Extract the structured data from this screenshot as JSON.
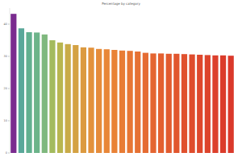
{
  "chart_data": {
    "type": "bar",
    "title": "Percentage by category",
    "categories": [
      null,
      null,
      null,
      null,
      null,
      null,
      null,
      null,
      null,
      null,
      null,
      null,
      null,
      null,
      null,
      null,
      null,
      null,
      null,
      null,
      null,
      null,
      null,
      null,
      null,
      null,
      null,
      null,
      null
    ],
    "values": [
      43.2,
      38.7,
      37.5,
      37.4,
      36.8,
      35.0,
      34.3,
      33.8,
      33.5,
      32.8,
      32.7,
      32.3,
      32.2,
      32.0,
      31.8,
      31.7,
      31.5,
      31.1,
      30.9,
      30.9,
      30.8,
      30.8,
      30.7,
      30.6,
      30.5,
      30.4,
      30.3,
      30.3,
      30.2
    ],
    "colors": [
      "#7a2b8f",
      "#5aa89a",
      "#62b090",
      "#6cb48a",
      "#7fb87e",
      "#a3bb5e",
      "#b8b650",
      "#c9ab48",
      "#d4a244",
      "#dc9a40",
      "#e3923c",
      "#e68c3a",
      "#e88738",
      "#e98236",
      "#e87c35",
      "#e77634",
      "#e67133",
      "#e56b32",
      "#e46531",
      "#e36030",
      "#e25b2f",
      "#e1562e",
      "#e0512e",
      "#df4c2d",
      "#de482d",
      "#dd442c",
      "#dc402c",
      "#db3c2b",
      "#da392b"
    ],
    "ylim": [
      0,
      45
    ],
    "yticks": [
      0,
      10,
      20,
      30,
      40
    ],
    "grid": false
  }
}
